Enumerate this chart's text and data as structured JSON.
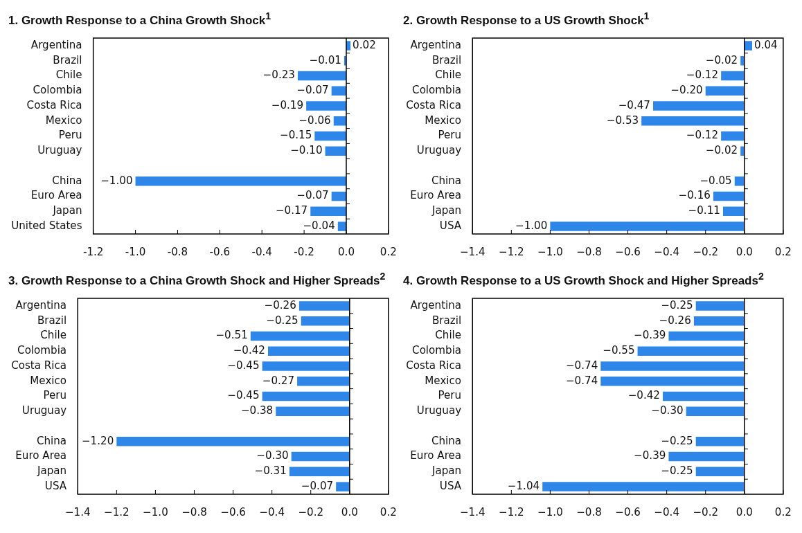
{
  "chart_data": [
    {
      "type": "bar",
      "orientation": "horizontal",
      "title": "1.  Growth Response to a China Growth Shock$^{1}$",
      "categories": [
        "Argentina",
        "Brazil",
        "Chile",
        "Colombia",
        "Costa Rica",
        "Mexico",
        "Peru",
        "Uruguay",
        null,
        "China",
        "Euro Area",
        "Japan",
        "United States"
      ],
      "values": [
        0.02,
        -0.01,
        -0.23,
        -0.07,
        -0.19,
        -0.06,
        -0.15,
        -0.1,
        null,
        -1.0,
        -0.07,
        -0.17,
        -0.04
      ],
      "value_labels": [
        "0.02",
        "−0.01",
        "−0.23",
        "−0.07",
        "−0.19",
        "−0.06",
        "−0.15",
        "−0.10",
        null,
        "−1.00",
        "−0.07",
        "−0.17",
        "−0.04"
      ],
      "color": "#2e86e8",
      "xlim": [
        -1.2,
        0.2
      ],
      "xticks": [
        -1.2,
        {
          "value": -1.0,
          "label": "-1.0"
        },
        -0.8,
        -0.6,
        -0.4,
        -0.2,
        {
          "value": 0,
          "label": "0.0"
        },
        0.2
      ]
    },
    {
      "type": "bar",
      "orientation": "horizontal",
      "title": "2.  Growth Response to a US Growth Shock$^{1}$",
      "categories": [
        "Argentina",
        "Brazil",
        "Chile",
        "Colombia",
        "Costa Rica",
        "Mexico",
        "Peru",
        "Uruguay",
        null,
        "China",
        "Euro Area",
        "Japan",
        "USA"
      ],
      "values": [
        0.04,
        -0.02,
        -0.12,
        -0.2,
        -0.47,
        -0.53,
        -0.12,
        -0.02,
        null,
        -0.05,
        -0.16,
        -0.11,
        -1.0
      ],
      "value_labels": [
        "0.04",
        "−0.02",
        "−0.12",
        "−0.20",
        "−0.47",
        "−0.53",
        "−0.12",
        "−0.02",
        null,
        "−0.05",
        "−0.16",
        "−0.11",
        "−1.00"
      ],
      "color": "#2e86e8",
      "xlim": [
        -1.4,
        0.2
      ],
      "xticks": [
        {
          "value": -1.4,
          "label": "−1.4"
        },
        {
          "value": -1.2,
          "label": "−1.2"
        },
        {
          "value": -1.0,
          "label": "−1.0"
        },
        {
          "value": -0.8,
          "label": "−0.8"
        },
        {
          "value": -0.6,
          "label": "−0.6"
        },
        {
          "value": -0.4,
          "label": "−0.4"
        },
        {
          "value": -0.2,
          "label": "−0.2"
        },
        {
          "value": 0,
          "label": "0.0"
        },
        0.2
      ]
    },
    {
      "type": "bar",
      "orientation": "horizontal",
      "title": "3.  Growth Response to a China Growth Shock and Higher Spreads$^{2}$",
      "categories": [
        "Argentina",
        "Brazil",
        "Chile",
        "Colombia",
        "Costa Rica",
        "Mexico",
        "Peru",
        "Uruguay",
        null,
        "China",
        "Euro Area",
        "Japan",
        "USA"
      ],
      "values": [
        -0.26,
        -0.25,
        -0.51,
        -0.42,
        -0.45,
        -0.27,
        -0.45,
        -0.38,
        null,
        -1.2,
        -0.3,
        -0.31,
        -0.07
      ],
      "value_labels": [
        "−0.26",
        "−0.25",
        "−0.51",
        "−0.42",
        "−0.45",
        "−0.27",
        "−0.45",
        "−0.38",
        null,
        "−1.20",
        "−0.30",
        "−0.31",
        "−0.07"
      ],
      "color": "#2e86e8",
      "xlim": [
        -1.4,
        0.2
      ],
      "xticks": [
        {
          "value": -1.4,
          "label": "−1.4"
        },
        {
          "value": -1.2,
          "label": "−1.2"
        },
        {
          "value": -1.0,
          "label": "−1.0"
        },
        {
          "value": -0.8,
          "label": "−0.8"
        },
        {
          "value": -0.6,
          "label": "−0.6"
        },
        {
          "value": -0.4,
          "label": "−0.4"
        },
        {
          "value": -0.2,
          "label": "−0.2"
        },
        {
          "value": 0,
          "label": "0.0"
        },
        0.2
      ]
    },
    {
      "type": "bar",
      "orientation": "horizontal",
      "title": "4.  Growth Response to a US Growth Shock and Higher Spreads$^{2}$",
      "categories": [
        "Argentina",
        "Brazil",
        "Chile",
        "Colombia",
        "Costa Rica",
        "Mexico",
        "Peru",
        "Uruguay",
        null,
        "China",
        "Euro Area",
        "Japan",
        "USA"
      ],
      "values": [
        -0.25,
        -0.26,
        -0.39,
        -0.55,
        -0.74,
        -0.74,
        -0.42,
        -0.3,
        null,
        -0.25,
        -0.39,
        -0.25,
        -1.04
      ],
      "value_labels": [
        "−0.25",
        "−0.26",
        "−0.39",
        "−0.55",
        "−0.74",
        "−0.74",
        "−0.42",
        "−0.30",
        null,
        "−0.25",
        "−0.39",
        "−0.25",
        "−1.04"
      ],
      "color": "#2e86e8",
      "xlim": [
        -1.4,
        0.2
      ],
      "xticks": [
        {
          "value": -1.4,
          "label": "−1.4"
        },
        {
          "value": -1.2,
          "label": "−1.2"
        },
        {
          "value": -1.0,
          "label": "−1.0"
        },
        {
          "value": -0.8,
          "label": "−0.8"
        },
        {
          "value": -0.6,
          "label": "−0.6"
        },
        {
          "value": -0.4,
          "label": "−0.4"
        },
        {
          "value": -0.2,
          "label": "−0.2"
        },
        {
          "value": 0,
          "label": "0.0"
        },
        0.2
      ]
    }
  ]
}
